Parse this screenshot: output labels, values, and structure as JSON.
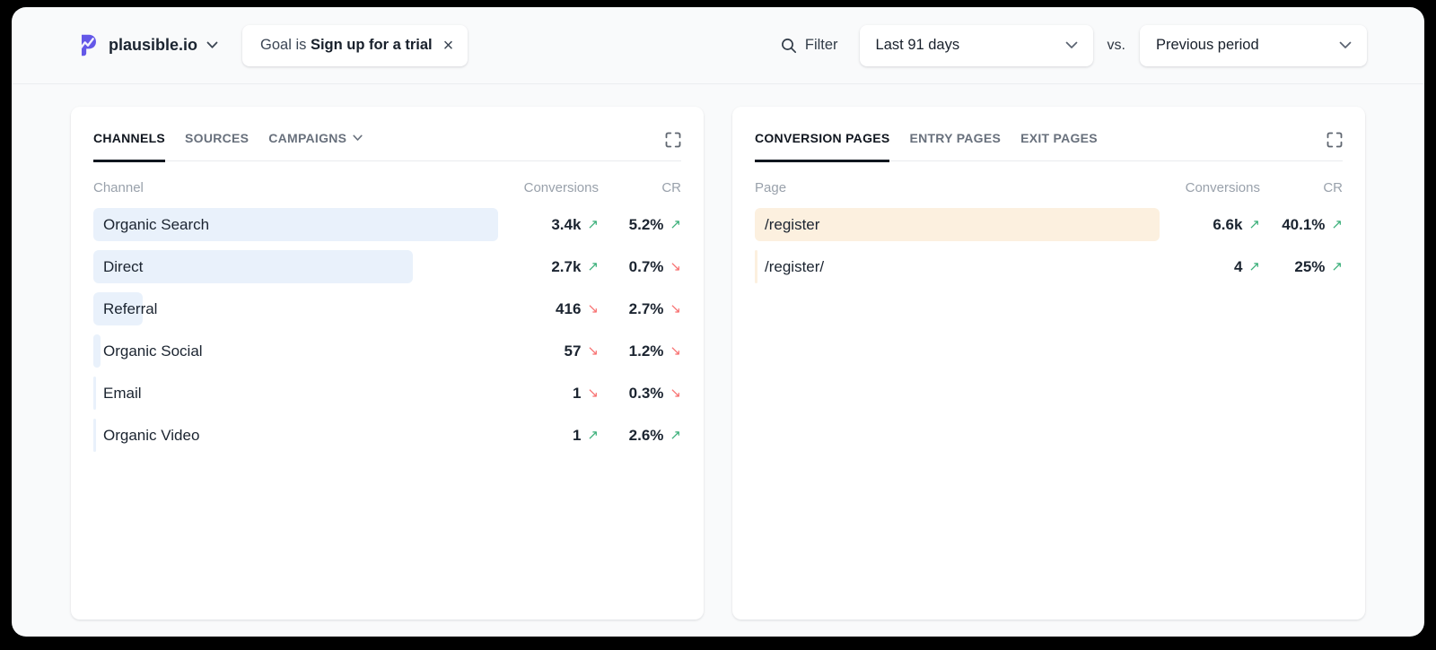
{
  "header": {
    "site": "plausible.io",
    "goal_filter": {
      "prefix": "Goal is ",
      "value": "Sign up for a trial",
      "close": "×"
    },
    "filter_label": "Filter",
    "date_range": "Last 91 days",
    "vs_label": "vs.",
    "comparison": "Previous period"
  },
  "colors": {
    "brand_purple": "#6458E8",
    "bar_blue": "#E9F1FB",
    "bar_orange": "#FCF0DF",
    "trend_up": "#3BB07A",
    "trend_down": "#F87171"
  },
  "panels": [
    {
      "id": "channels",
      "bar_color": "#E9F1FB",
      "tabs": [
        {
          "label": "Channels",
          "active": true
        },
        {
          "label": "Sources",
          "active": false
        },
        {
          "label": "Campaigns",
          "active": false,
          "has_dropdown": true
        }
      ],
      "columns": {
        "label": "Channel",
        "conversions": "Conversions",
        "cr": "CR"
      },
      "rows": [
        {
          "label": "Organic Search",
          "conversions": "3.4k",
          "conv_dir": "up",
          "cr": "5.2%",
          "cr_dir": "up",
          "bar_pct": 100
        },
        {
          "label": "Direct",
          "conversions": "2.7k",
          "conv_dir": "up",
          "cr": "0.7%",
          "cr_dir": "down",
          "bar_pct": 79
        },
        {
          "label": "Referral",
          "conversions": "416",
          "conv_dir": "down",
          "cr": "2.7%",
          "cr_dir": "down",
          "bar_pct": 12.2
        },
        {
          "label": "Organic Social",
          "conversions": "57",
          "conv_dir": "down",
          "cr": "1.2%",
          "cr_dir": "down",
          "bar_pct": 1.7
        },
        {
          "label": "Email",
          "conversions": "1",
          "conv_dir": "down",
          "cr": "0.3%",
          "cr_dir": "down",
          "bar_pct": 0.3
        },
        {
          "label": "Organic Video",
          "conversions": "1",
          "conv_dir": "up",
          "cr": "2.6%",
          "cr_dir": "up",
          "bar_pct": 0.3
        }
      ]
    },
    {
      "id": "conversion-pages",
      "bar_color": "#FCF0DF",
      "tabs": [
        {
          "label": "Conversion Pages",
          "active": true
        },
        {
          "label": "Entry Pages",
          "active": false
        },
        {
          "label": "Exit Pages",
          "active": false
        }
      ],
      "columns": {
        "label": "Page",
        "conversions": "Conversions",
        "cr": "CR"
      },
      "rows": [
        {
          "label": "/register",
          "conversions": "6.6k",
          "conv_dir": "up",
          "cr": "40.1%",
          "cr_dir": "up",
          "bar_pct": 100
        },
        {
          "label": "/register/",
          "conversions": "4",
          "conv_dir": "up",
          "cr": "25%",
          "cr_dir": "up",
          "bar_pct": 0.3
        }
      ]
    }
  ]
}
